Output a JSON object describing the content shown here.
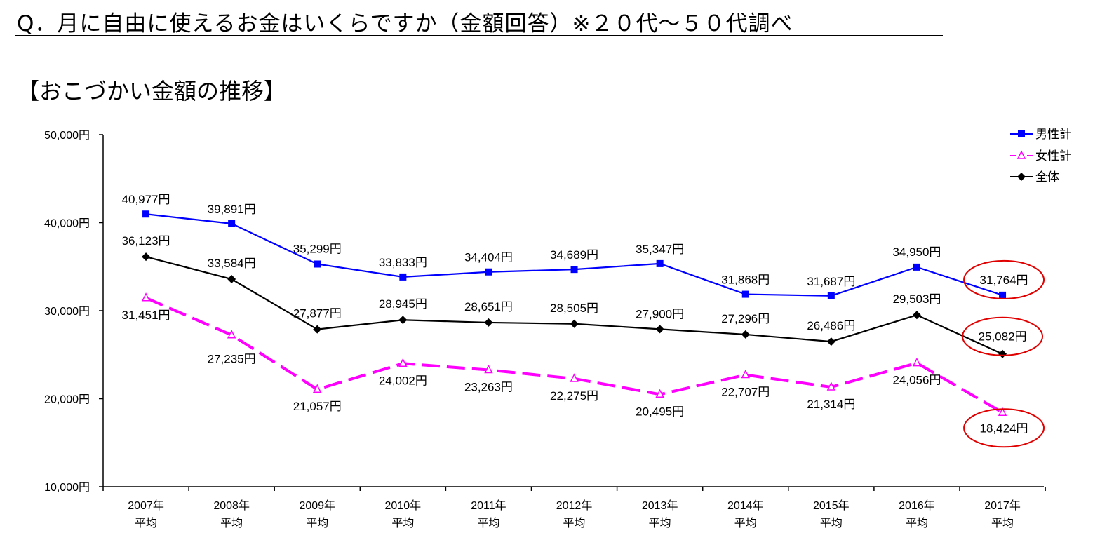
{
  "question": "Q．月に自由に使えるお金はいくらですか（金額回答）※２０代～５０代調べ",
  "subtitle": "【おこづかい金額の推移】",
  "chart_data": {
    "type": "line",
    "title": "",
    "xlabel": "",
    "ylabel": "",
    "ylim": [
      10000,
      50000
    ],
    "y_ticks": [
      10000,
      20000,
      30000,
      40000,
      50000
    ],
    "y_tick_labels": [
      "10,000円",
      "20,000円",
      "30,000円",
      "40,000円",
      "50,000円"
    ],
    "categories": [
      [
        "2007年",
        "平均"
      ],
      [
        "2008年",
        "平均"
      ],
      [
        "2009年",
        "平均"
      ],
      [
        "2010年",
        "平均"
      ],
      [
        "2011年",
        "平均"
      ],
      [
        "2012年",
        "平均"
      ],
      [
        "2013年",
        "平均"
      ],
      [
        "2014年",
        "平均"
      ],
      [
        "2015年",
        "平均"
      ],
      [
        "2016年",
        "平均"
      ],
      [
        "2017年",
        "平均"
      ]
    ],
    "legend_position": "top-right",
    "grid": false,
    "series": [
      {
        "name": "男性計",
        "color": "#0000ff",
        "marker": "square",
        "dash": "solid",
        "values": [
          40977,
          39891,
          35299,
          33833,
          34404,
          34689,
          35347,
          31868,
          31687,
          34950,
          31764
        ],
        "labels": [
          "40,977円",
          "39,891円",
          "35,299円",
          "33,833円",
          "34,404円",
          "34,689円",
          "35,347円",
          "31,868円",
          "31,687円",
          "34,950円",
          "31,764円"
        ]
      },
      {
        "name": "女性計",
        "color": "#ff00ff",
        "marker": "triangle-open",
        "dash": "dashed",
        "values": [
          31451,
          27235,
          21057,
          24002,
          23263,
          22275,
          20495,
          22707,
          21314,
          24056,
          18424
        ],
        "labels": [
          "31,451円",
          "27,235円",
          "21,057円",
          "24,002円",
          "23,263円",
          "22,275円",
          "20,495円",
          "22,707円",
          "21,314円",
          "24,056円",
          "18,424円"
        ]
      },
      {
        "name": "全体",
        "color": "#000000",
        "marker": "diamond",
        "dash": "solid",
        "values": [
          36123,
          33584,
          27877,
          28945,
          28651,
          28505,
          27900,
          27296,
          26486,
          29503,
          25082
        ],
        "labels": [
          "36,123円",
          "33,584円",
          "27,877円",
          "28,945円",
          "28,651円",
          "28,505円",
          "27,900円",
          "27,296円",
          "26,486円",
          "29,503円",
          "25,082円"
        ]
      }
    ],
    "highlight_color": "#e00000"
  }
}
